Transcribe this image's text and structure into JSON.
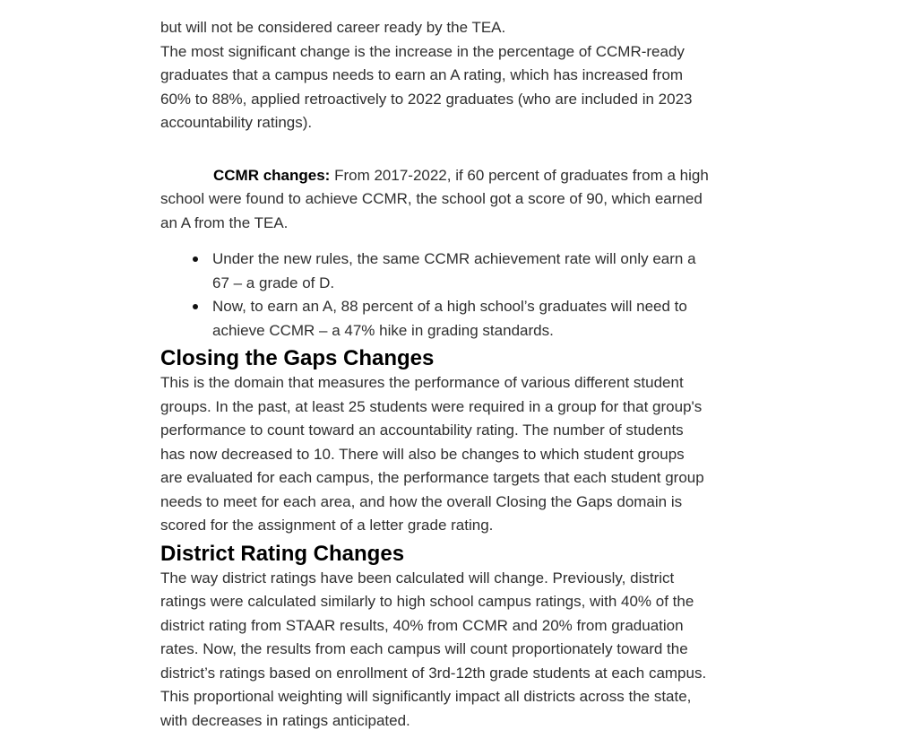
{
  "colors": {
    "background": "#ffffff",
    "body_text": "#2f2f2f",
    "heading_text": "#000000"
  },
  "fragment": {
    "lines": [
      "but will not be considered career ready by the TEA."
    ]
  },
  "significant_change": {
    "lines": [
      "The most significant change is the increase in the percentage of CCMR-ready",
      "graduates that a campus needs to earn an A rating, which has increased from",
      "60% to 88%, applied retroactively to 2022 graduates (who are included in 2023",
      "accountability ratings)."
    ]
  },
  "ccmr": {
    "bold_label": "CCMR changes:",
    "line1_rest": " From 2017-2022, if 60 percent of graduates from a high",
    "lines": [
      "school were found to achieve CCMR, the school got a score of 90, which earned",
      "an A from the TEA."
    ]
  },
  "bullets": [
    {
      "lines": [
        "Under the new rules, the same CCMR achievement rate will only earn a",
        "67 – a grade of D."
      ]
    },
    {
      "lines": [
        "Now, to earn an A, 88 percent of a high school’s graduates will need to",
        "achieve CCMR – a 47% hike in grading standards."
      ]
    }
  ],
  "sections": [
    {
      "heading": "Closing the Gaps Changes",
      "lines": [
        "This is the domain that measures the performance of various different student",
        "groups. In the past, at least 25 students were required in a group for that group's",
        "performance to count toward an accountability rating. The number of students",
        "has now decreased to 10. There will also be changes to which student groups",
        "are evaluated for each campus, the performance targets that each student group",
        "needs to meet for each area, and how the overall Closing the Gaps domain is",
        "scored for the assignment of a letter grade rating."
      ]
    },
    {
      "heading": "District Rating Changes",
      "lines": [
        "The way district ratings have been calculated will change. Previously, district",
        "ratings were calculated similarly to high school campus ratings, with 40% of the",
        "district rating from STAAR results, 40% from CCMR and 20% from graduation",
        "rates. Now, the results from each campus will count proportionately toward the",
        "district’s ratings based on enrollment of 3rd-12th grade students at each campus.",
        "This proportional weighting will significantly impact all districts across the state,",
        "with decreases in ratings anticipated."
      ]
    }
  ]
}
